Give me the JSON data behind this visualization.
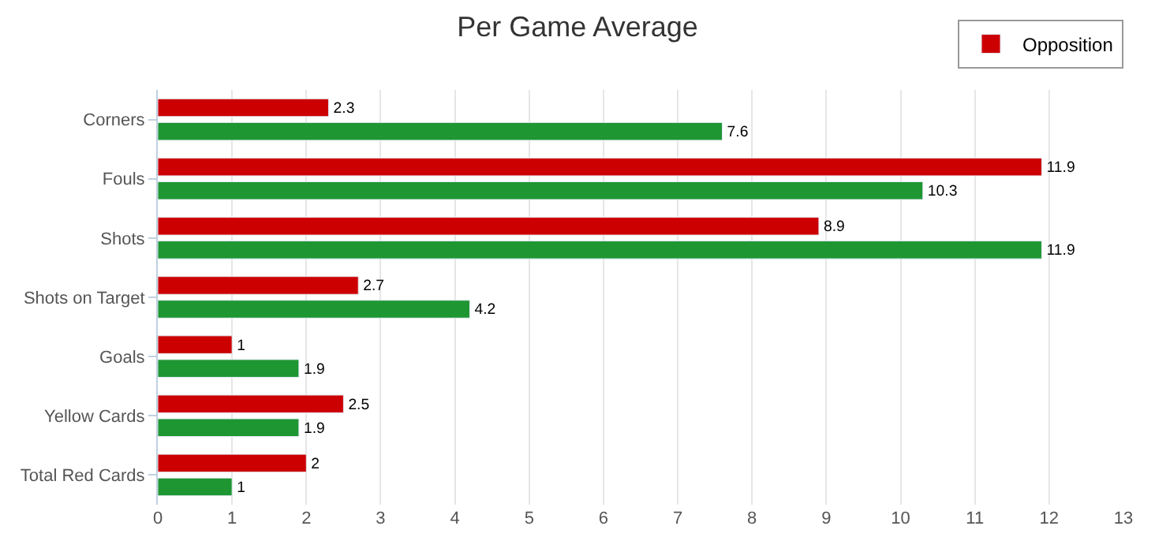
{
  "chart_data": {
    "type": "bar",
    "orientation": "horizontal",
    "title": "Per Game Average",
    "categories": [
      "Corners",
      "Fouls",
      "Shots",
      "Shots on Target",
      "Goals",
      "Yellow Cards",
      "Total Red Cards"
    ],
    "series": [
      {
        "name": "Opposition",
        "color": "#cc0000",
        "values": [
          2.3,
          11.9,
          8.9,
          2.7,
          1,
          2.5,
          2
        ]
      },
      {
        "color": "#1e9632",
        "values": [
          7.6,
          10.3,
          11.9,
          4.2,
          1.9,
          1.9,
          1
        ]
      }
    ],
    "xlim": [
      0,
      13
    ],
    "xticks": [
      0,
      1,
      2,
      3,
      4,
      5,
      6,
      7,
      8,
      9,
      10,
      11,
      12,
      13
    ],
    "grid": "x",
    "legend": "top right",
    "data_labels": true
  }
}
